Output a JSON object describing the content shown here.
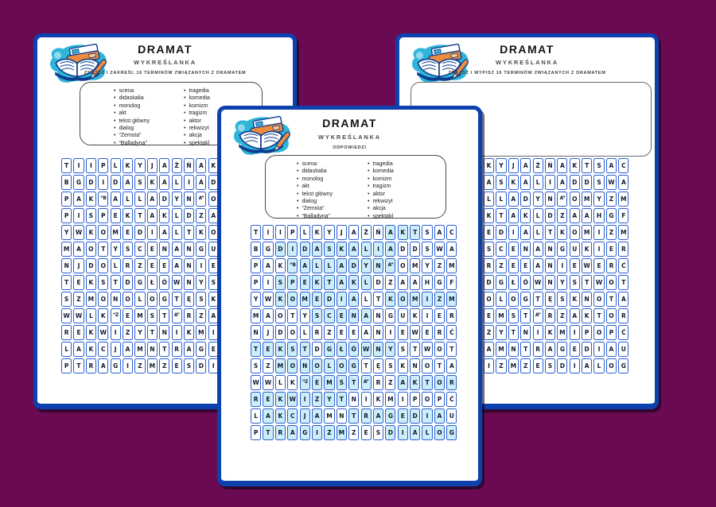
{
  "background_color": "#6A0A52",
  "colors": {
    "page_border_blue": "#0D41B0",
    "cell_border_blue": "#2A5FD0",
    "highlight_cyan": "#CDEEF9",
    "logo_teal": "#2FB5D9",
    "logo_orange": "#EF8B3D",
    "logo_navy": "#0F3E8F"
  },
  "shared": {
    "title": "DRAMAT",
    "subtitle": "WYKREŚLANKA",
    "word_columns": [
      [
        "scena",
        "didaskalia",
        "monolog",
        "akt",
        "tekst główny",
        "dialog",
        "“Zemsta”",
        "“Balladyna”"
      ],
      [
        "tragedia",
        "komedia",
        "komizm",
        "tragizm",
        "aktor",
        "rekwizyt",
        "akcja",
        "spektakl"
      ]
    ]
  },
  "pages": {
    "left": {
      "instruction": "ZNAJDŹ I ZAKREŚL 16 TERMINÓW ZWIĄZANYCH Z DRAMATEM"
    },
    "center": {
      "instruction": "ODPOWIEDZI"
    },
    "right": {
      "instruction": "ZNAJDŹ I WYPISZ  16 TERMINÓW ZWIĄZANYCH Z DRAMATEM"
    }
  },
  "grid": {
    "columns": 17,
    "rows": [
      {
        "cells": [
          "T",
          "I",
          "I",
          "P",
          "L",
          "K",
          "Y",
          "J",
          "A",
          "Ż",
          "Ń",
          "A",
          "K",
          "T",
          "S",
          "A",
          "C"
        ],
        "hl": [
          0,
          0,
          0,
          0,
          0,
          0,
          0,
          0,
          0,
          0,
          0,
          1,
          1,
          1,
          0,
          0,
          0
        ]
      },
      {
        "cells": [
          "B",
          "G",
          "D",
          "I",
          "D",
          "A",
          "S",
          "K",
          "A",
          "L",
          "I",
          "A",
          "D",
          "D",
          "S",
          "W",
          "A"
        ],
        "hl": [
          0,
          0,
          1,
          1,
          1,
          1,
          1,
          1,
          1,
          1,
          1,
          1,
          0,
          0,
          0,
          0,
          0
        ]
      },
      {
        "cells": [
          "P",
          "A",
          "K",
          "“B",
          "A",
          "L",
          "L",
          "A",
          "D",
          "Y",
          "N",
          "A”",
          "O",
          "M",
          "Y",
          "Z",
          "M"
        ],
        "hl": [
          0,
          0,
          0,
          1,
          1,
          1,
          1,
          1,
          1,
          1,
          1,
          1,
          0,
          0,
          0,
          0,
          0
        ]
      },
      {
        "cells": [
          "P",
          "I",
          "S",
          "P",
          "E",
          "K",
          "T",
          "A",
          "K",
          "L",
          "D",
          "Z",
          "A",
          "A",
          "H",
          "G",
          "F"
        ],
        "hl": [
          0,
          0,
          1,
          1,
          1,
          1,
          1,
          1,
          1,
          1,
          0,
          0,
          0,
          0,
          0,
          0,
          0
        ]
      },
      {
        "cells": [
          "Y",
          "W",
          "K",
          "O",
          "M",
          "E",
          "D",
          "I",
          "A",
          "L",
          "T",
          "K",
          "O",
          "M",
          "I",
          "Z",
          "M"
        ],
        "hl": [
          0,
          0,
          1,
          1,
          1,
          1,
          1,
          1,
          1,
          0,
          0,
          1,
          1,
          1,
          1,
          1,
          1
        ]
      },
      {
        "cells": [
          "M",
          "A",
          "O",
          "T",
          "Y",
          "S",
          "C",
          "E",
          "N",
          "A",
          "N",
          "G",
          "U",
          "K",
          "I",
          "E",
          "R"
        ],
        "hl": [
          0,
          0,
          0,
          0,
          0,
          1,
          1,
          1,
          1,
          1,
          0,
          0,
          0,
          0,
          0,
          0,
          0
        ]
      },
      {
        "cells": [
          "N",
          "J",
          "D",
          "O",
          "L",
          "R",
          "Z",
          "E",
          "E",
          "A",
          "N",
          "I",
          "E",
          "W",
          "E",
          "R",
          "Ć"
        ],
        "hl": [
          0,
          0,
          0,
          0,
          0,
          0,
          0,
          0,
          0,
          0,
          0,
          0,
          0,
          0,
          0,
          0,
          0
        ]
      },
      {
        "cells": [
          "T",
          "E",
          "K",
          "S",
          "T",
          "D",
          "G",
          "Ł",
          "Ó",
          "W",
          "N",
          "Y",
          "S",
          "T",
          "W",
          "O",
          "T"
        ],
        "hl": [
          1,
          1,
          1,
          1,
          1,
          0,
          1,
          1,
          1,
          1,
          1,
          1,
          0,
          0,
          0,
          0,
          0
        ]
      },
      {
        "cells": [
          "S",
          "Z",
          "M",
          "O",
          "N",
          "O",
          "L",
          "O",
          "G",
          "T",
          "Ę",
          "S",
          "K",
          "N",
          "O",
          "T",
          "A"
        ],
        "hl": [
          0,
          0,
          1,
          1,
          1,
          1,
          1,
          1,
          1,
          0,
          0,
          0,
          0,
          0,
          0,
          0,
          0
        ]
      },
      {
        "cells": [
          "W",
          "W",
          "L",
          "K",
          "“Z",
          "E",
          "M",
          "S",
          "T",
          "A”",
          "R",
          "Z",
          "A",
          "K",
          "T",
          "O",
          "R"
        ],
        "hl": [
          0,
          0,
          0,
          0,
          1,
          1,
          1,
          1,
          1,
          1,
          0,
          0,
          1,
          1,
          1,
          1,
          1
        ]
      },
      {
        "cells": [
          "R",
          "E",
          "K",
          "W",
          "I",
          "Z",
          "Y",
          "T",
          "N",
          "I",
          "K",
          "M",
          "I",
          "P",
          "O",
          "P",
          "Ć"
        ],
        "hl": [
          1,
          1,
          1,
          1,
          1,
          1,
          1,
          1,
          0,
          0,
          0,
          0,
          0,
          0,
          0,
          0,
          0
        ]
      },
      {
        "cells": [
          "L",
          "A",
          "K",
          "C",
          "J",
          "A",
          "M",
          "N",
          "T",
          "R",
          "A",
          "G",
          "E",
          "D",
          "I",
          "A",
          "U"
        ],
        "hl": [
          0,
          1,
          1,
          1,
          1,
          1,
          0,
          0,
          1,
          1,
          1,
          1,
          1,
          1,
          1,
          1,
          0
        ]
      },
      {
        "cells": [
          "P",
          "T",
          "R",
          "A",
          "G",
          "I",
          "Z",
          "M",
          "Z",
          "E",
          "S",
          "D",
          "I",
          "A",
          "L",
          "O",
          "G"
        ],
        "hl": [
          0,
          1,
          1,
          1,
          1,
          1,
          1,
          1,
          0,
          0,
          0,
          1,
          1,
          1,
          1,
          1,
          1
        ]
      }
    ]
  }
}
